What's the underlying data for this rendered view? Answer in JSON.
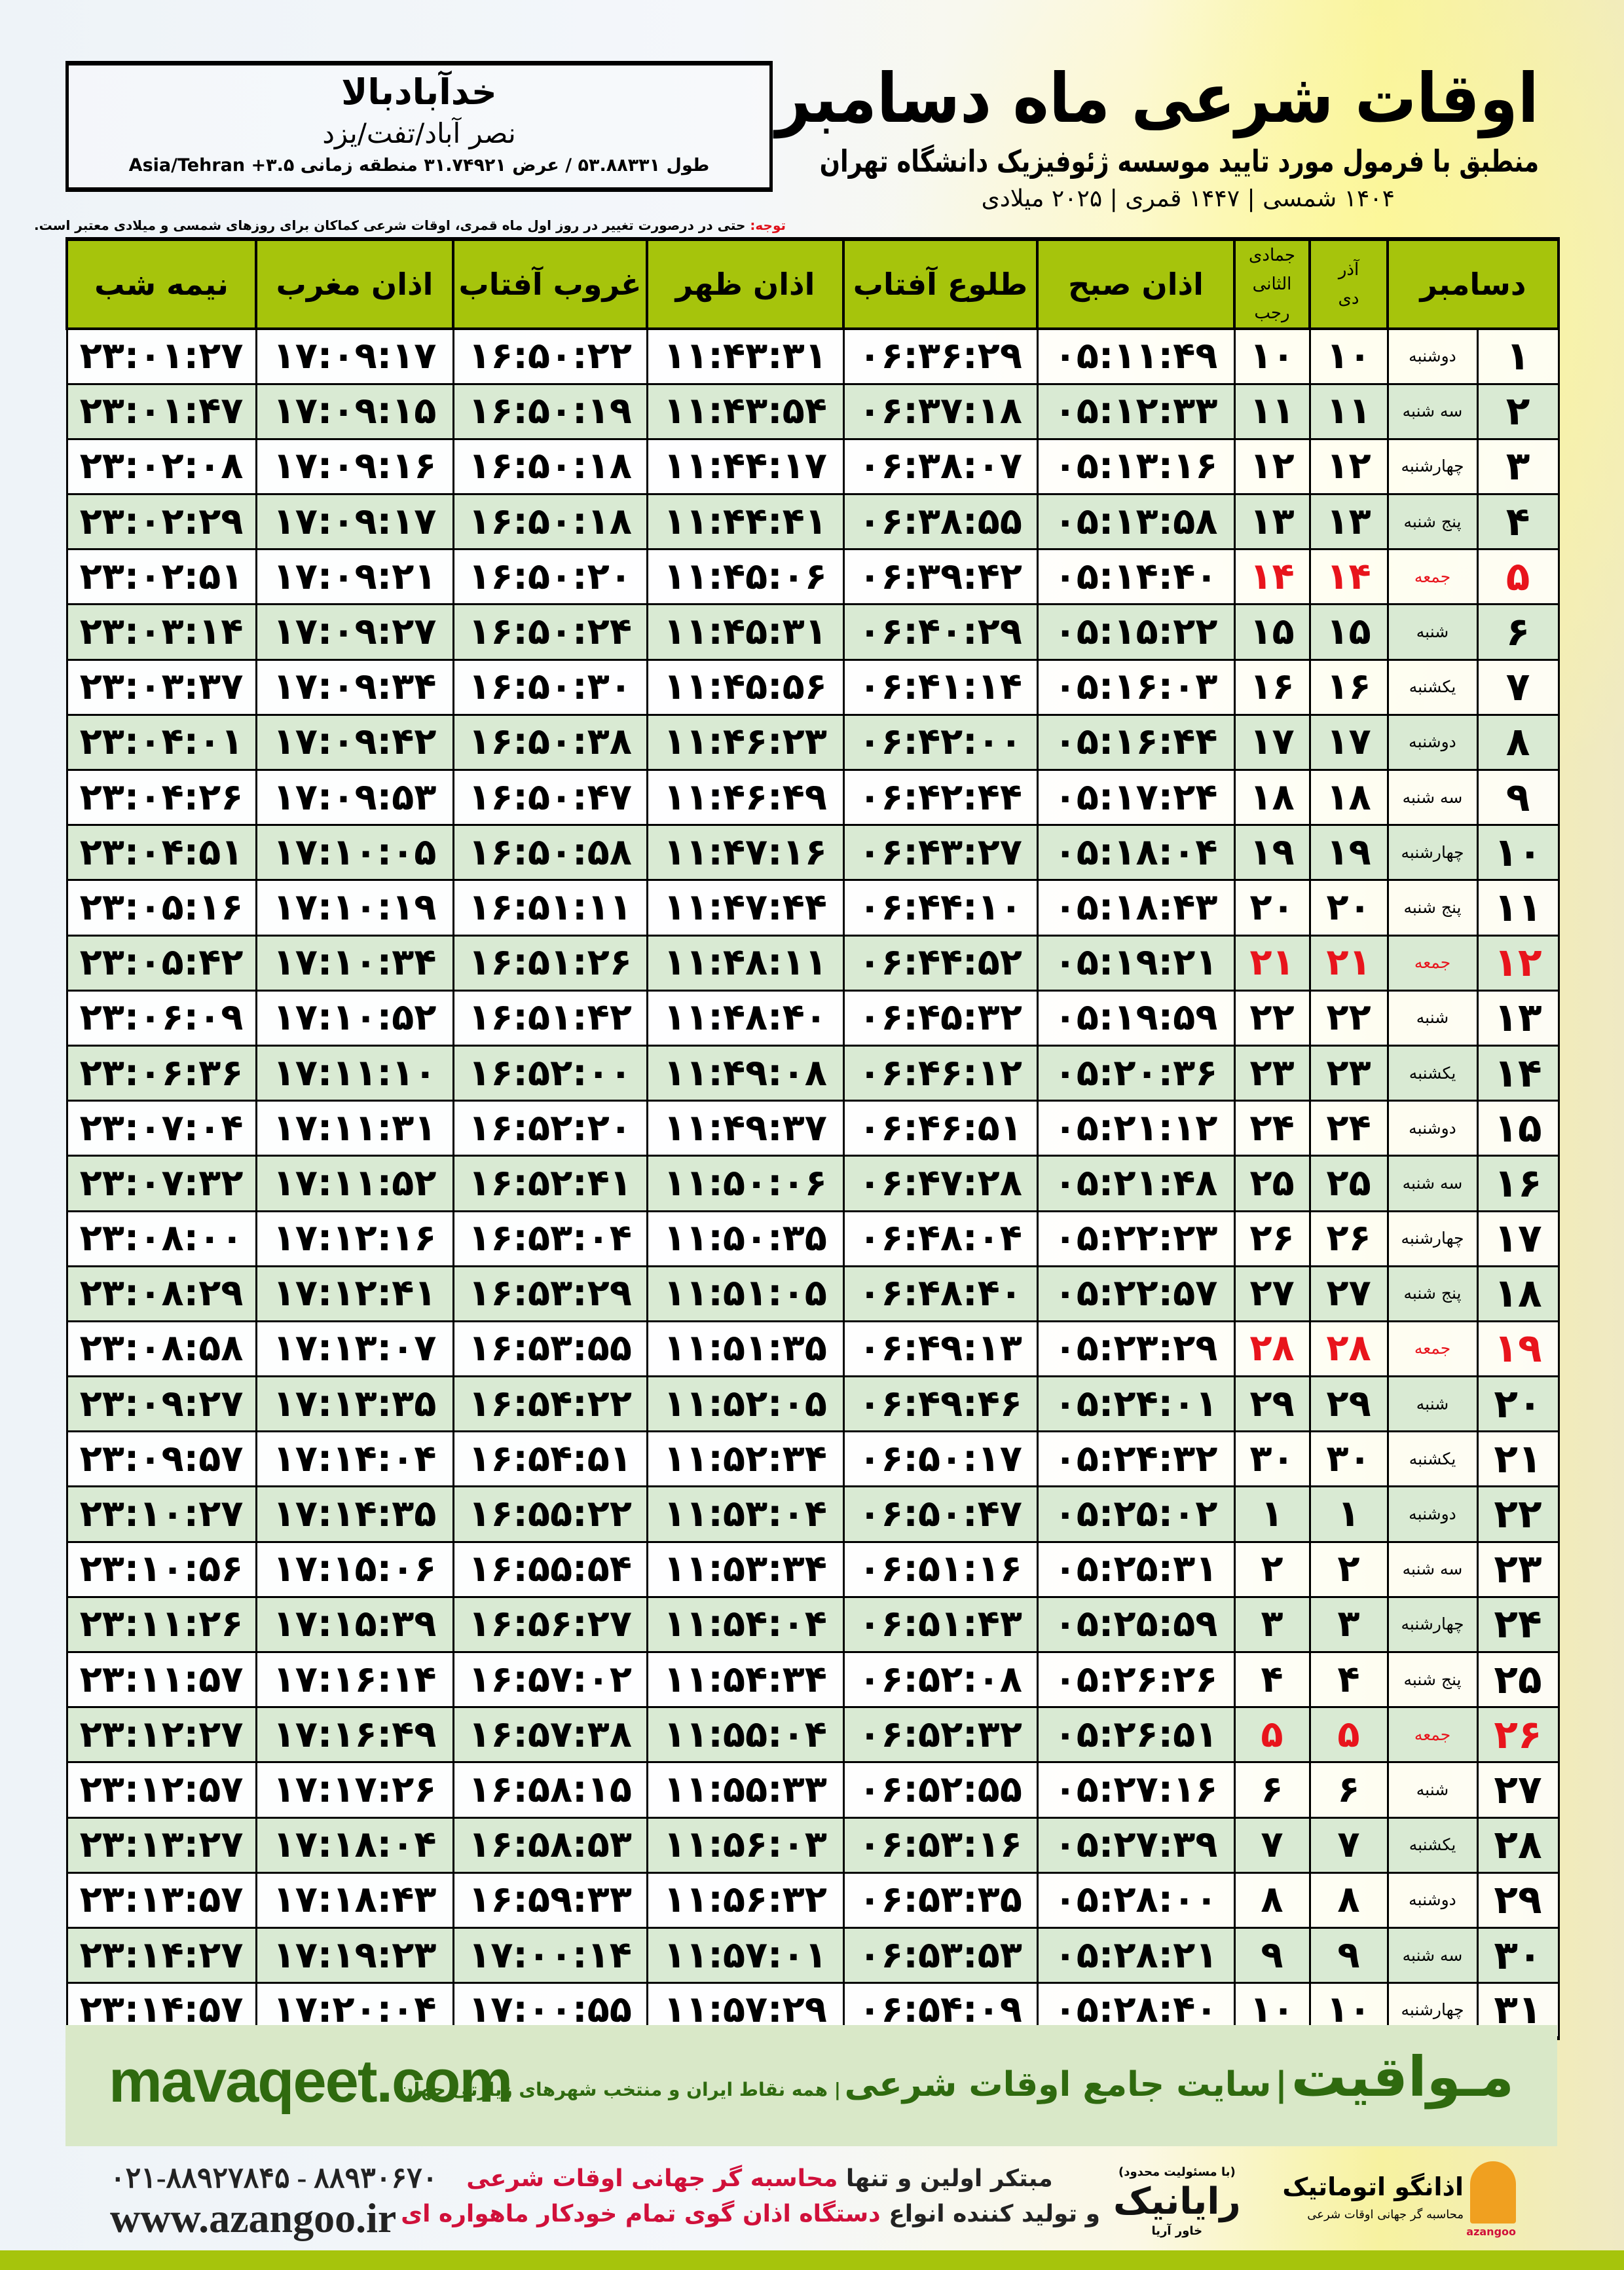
{
  "header": {
    "title": "اوقات شرعی ماه دسامبر",
    "subtitle": "منطبق با فرمول مورد تایید موسسه ژئوفیزیک دانشگاه تهران",
    "dates": "۱۴۰۴ شمسی | ۱۴۴۷ قمری | ۲۰۲۵ میلادی"
  },
  "location": {
    "city": "خدآبادبالا",
    "region": "نصر آباد/تفت/یزد",
    "coords": "طول ۵۳.۸۸۳۳۱ / عرض ۳۱.۷۴۹۲۱ منطقه زمانی ۳.۵+ Asia/Tehran"
  },
  "note": {
    "label": "توجه:",
    "text": " حتی در درصورت تغییر در روز اول ماه قمری، اوقات شرعی کماکان برای روزهای شمسی و میلادی معتبر است."
  },
  "columns": {
    "month": "دسامبر",
    "shamsi_top": "آذر",
    "shamsi_bottom": "دی",
    "qamari_top": "جمادی الثانی",
    "qamari_bottom": "رجب",
    "sobh": "اذان صبح",
    "tolu": "طلوع آفتاب",
    "zohr": "اذان ظهر",
    "ghurub": "غروب آفتاب",
    "maghrib": "اذان مغرب",
    "nimeh": "نیمه شب"
  },
  "colors": {
    "header_green": "#a6c40c",
    "row_green": "#d9ead3",
    "friday_red": "#e8141c",
    "brand_green": "#2f6a0f"
  },
  "rows": [
    {
      "day": "۱",
      "weekday": "دوشنبه",
      "dey": "۱۰",
      "rajab": "۱۰",
      "sobh": "۰۵:۱۱:۴۹",
      "tolu": "۰۶:۳۶:۲۹",
      "zohr": "۱۱:۴۳:۳۱",
      "ghurub": "۱۶:۵۰:۲۲",
      "maghrib": "۱۷:۰۹:۱۷",
      "nimeh": "۲۳:۰۱:۲۷"
    },
    {
      "day": "۲",
      "weekday": "سه شنبه",
      "dey": "۱۱",
      "rajab": "۱۱",
      "sobh": "۰۵:۱۲:۳۳",
      "tolu": "۰۶:۳۷:۱۸",
      "zohr": "۱۱:۴۳:۵۴",
      "ghurub": "۱۶:۵۰:۱۹",
      "maghrib": "۱۷:۰۹:۱۵",
      "nimeh": "۲۳:۰۱:۴۷"
    },
    {
      "day": "۳",
      "weekday": "چهارشنبه",
      "dey": "۱۲",
      "rajab": "۱۲",
      "sobh": "۰۵:۱۳:۱۶",
      "tolu": "۰۶:۳۸:۰۷",
      "zohr": "۱۱:۴۴:۱۷",
      "ghurub": "۱۶:۵۰:۱۸",
      "maghrib": "۱۷:۰۹:۱۶",
      "nimeh": "۲۳:۰۲:۰۸"
    },
    {
      "day": "۴",
      "weekday": "پنج شنبه",
      "dey": "۱۳",
      "rajab": "۱۳",
      "sobh": "۰۵:۱۳:۵۸",
      "tolu": "۰۶:۳۸:۵۵",
      "zohr": "۱۱:۴۴:۴۱",
      "ghurub": "۱۶:۵۰:۱۸",
      "maghrib": "۱۷:۰۹:۱۷",
      "nimeh": "۲۳:۰۲:۲۹"
    },
    {
      "day": "۵",
      "weekday": "جمعه",
      "dey": "۱۴",
      "rajab": "۱۴",
      "sobh": "۰۵:۱۴:۴۰",
      "tolu": "۰۶:۳۹:۴۲",
      "zohr": "۱۱:۴۵:۰۶",
      "ghurub": "۱۶:۵۰:۲۰",
      "maghrib": "۱۷:۰۹:۲۱",
      "nimeh": "۲۳:۰۲:۵۱",
      "friday": true
    },
    {
      "day": "۶",
      "weekday": "شنبه",
      "dey": "۱۵",
      "rajab": "۱۵",
      "sobh": "۰۵:۱۵:۲۲",
      "tolu": "۰۶:۴۰:۲۹",
      "zohr": "۱۱:۴۵:۳۱",
      "ghurub": "۱۶:۵۰:۲۴",
      "maghrib": "۱۷:۰۹:۲۷",
      "nimeh": "۲۳:۰۳:۱۴"
    },
    {
      "day": "۷",
      "weekday": "یکشنبه",
      "dey": "۱۶",
      "rajab": "۱۶",
      "sobh": "۰۵:۱۶:۰۳",
      "tolu": "۰۶:۴۱:۱۴",
      "zohr": "۱۱:۴۵:۵۶",
      "ghurub": "۱۶:۵۰:۳۰",
      "maghrib": "۱۷:۰۹:۳۴",
      "nimeh": "۲۳:۰۳:۳۷"
    },
    {
      "day": "۸",
      "weekday": "دوشنبه",
      "dey": "۱۷",
      "rajab": "۱۷",
      "sobh": "۰۵:۱۶:۴۴",
      "tolu": "۰۶:۴۲:۰۰",
      "zohr": "۱۱:۴۶:۲۳",
      "ghurub": "۱۶:۵۰:۳۸",
      "maghrib": "۱۷:۰۹:۴۲",
      "nimeh": "۲۳:۰۴:۰۱"
    },
    {
      "day": "۹",
      "weekday": "سه شنبه",
      "dey": "۱۸",
      "rajab": "۱۸",
      "sobh": "۰۵:۱۷:۲۴",
      "tolu": "۰۶:۴۲:۴۴",
      "zohr": "۱۱:۴۶:۴۹",
      "ghurub": "۱۶:۵۰:۴۷",
      "maghrib": "۱۷:۰۹:۵۳",
      "nimeh": "۲۳:۰۴:۲۶"
    },
    {
      "day": "۱۰",
      "weekday": "چهارشنبه",
      "dey": "۱۹",
      "rajab": "۱۹",
      "sobh": "۰۵:۱۸:۰۴",
      "tolu": "۰۶:۴۳:۲۷",
      "zohr": "۱۱:۴۷:۱۶",
      "ghurub": "۱۶:۵۰:۵۸",
      "maghrib": "۱۷:۱۰:۰۵",
      "nimeh": "۲۳:۰۴:۵۱"
    },
    {
      "day": "۱۱",
      "weekday": "پنج شنبه",
      "dey": "۲۰",
      "rajab": "۲۰",
      "sobh": "۰۵:۱۸:۴۳",
      "tolu": "۰۶:۴۴:۱۰",
      "zohr": "۱۱:۴۷:۴۴",
      "ghurub": "۱۶:۵۱:۱۱",
      "maghrib": "۱۷:۱۰:۱۹",
      "nimeh": "۲۳:۰۵:۱۶"
    },
    {
      "day": "۱۲",
      "weekday": "جمعه",
      "dey": "۲۱",
      "rajab": "۲۱",
      "sobh": "۰۵:۱۹:۲۱",
      "tolu": "۰۶:۴۴:۵۲",
      "zohr": "۱۱:۴۸:۱۱",
      "ghurub": "۱۶:۵۱:۲۶",
      "maghrib": "۱۷:۱۰:۳۴",
      "nimeh": "۲۳:۰۵:۴۲",
      "friday": true
    },
    {
      "day": "۱۳",
      "weekday": "شنبه",
      "dey": "۲۲",
      "rajab": "۲۲",
      "sobh": "۰۵:۱۹:۵۹",
      "tolu": "۰۶:۴۵:۳۲",
      "zohr": "۱۱:۴۸:۴۰",
      "ghurub": "۱۶:۵۱:۴۲",
      "maghrib": "۱۷:۱۰:۵۲",
      "nimeh": "۲۳:۰۶:۰۹"
    },
    {
      "day": "۱۴",
      "weekday": "یکشنبه",
      "dey": "۲۳",
      "rajab": "۲۳",
      "sobh": "۰۵:۲۰:۳۶",
      "tolu": "۰۶:۴۶:۱۲",
      "zohr": "۱۱:۴۹:۰۸",
      "ghurub": "۱۶:۵۲:۰۰",
      "maghrib": "۱۷:۱۱:۱۰",
      "nimeh": "۲۳:۰۶:۳۶"
    },
    {
      "day": "۱۵",
      "weekday": "دوشنبه",
      "dey": "۲۴",
      "rajab": "۲۴",
      "sobh": "۰۵:۲۱:۱۲",
      "tolu": "۰۶:۴۶:۵۱",
      "zohr": "۱۱:۴۹:۳۷",
      "ghurub": "۱۶:۵۲:۲۰",
      "maghrib": "۱۷:۱۱:۳۱",
      "nimeh": "۲۳:۰۷:۰۴"
    },
    {
      "day": "۱۶",
      "weekday": "سه شنبه",
      "dey": "۲۵",
      "rajab": "۲۵",
      "sobh": "۰۵:۲۱:۴۸",
      "tolu": "۰۶:۴۷:۲۸",
      "zohr": "۱۱:۵۰:۰۶",
      "ghurub": "۱۶:۵۲:۴۱",
      "maghrib": "۱۷:۱۱:۵۲",
      "nimeh": "۲۳:۰۷:۳۲"
    },
    {
      "day": "۱۷",
      "weekday": "چهارشنبه",
      "dey": "۲۶",
      "rajab": "۲۶",
      "sobh": "۰۵:۲۲:۲۳",
      "tolu": "۰۶:۴۸:۰۴",
      "zohr": "۱۱:۵۰:۳۵",
      "ghurub": "۱۶:۵۳:۰۴",
      "maghrib": "۱۷:۱۲:۱۶",
      "nimeh": "۲۳:۰۸:۰۰"
    },
    {
      "day": "۱۸",
      "weekday": "پنج شنبه",
      "dey": "۲۷",
      "rajab": "۲۷",
      "sobh": "۰۵:۲۲:۵۷",
      "tolu": "۰۶:۴۸:۴۰",
      "zohr": "۱۱:۵۱:۰۵",
      "ghurub": "۱۶:۵۳:۲۹",
      "maghrib": "۱۷:۱۲:۴۱",
      "nimeh": "۲۳:۰۸:۲۹"
    },
    {
      "day": "۱۹",
      "weekday": "جمعه",
      "dey": "۲۸",
      "rajab": "۲۸",
      "sobh": "۰۵:۲۳:۲۹",
      "tolu": "۰۶:۴۹:۱۳",
      "zohr": "۱۱:۵۱:۳۵",
      "ghurub": "۱۶:۵۳:۵۵",
      "maghrib": "۱۷:۱۳:۰۷",
      "nimeh": "۲۳:۰۸:۵۸",
      "friday": true
    },
    {
      "day": "۲۰",
      "weekday": "شنبه",
      "dey": "۲۹",
      "rajab": "۲۹",
      "sobh": "۰۵:۲۴:۰۱",
      "tolu": "۰۶:۴۹:۴۶",
      "zohr": "۱۱:۵۲:۰۵",
      "ghurub": "۱۶:۵۴:۲۲",
      "maghrib": "۱۷:۱۳:۳۵",
      "nimeh": "۲۳:۰۹:۲۷"
    },
    {
      "day": "۲۱",
      "weekday": "یکشنبه",
      "dey": "۳۰",
      "rajab": "۳۰",
      "sobh": "۰۵:۲۴:۳۲",
      "tolu": "۰۶:۵۰:۱۷",
      "zohr": "۱۱:۵۲:۳۴",
      "ghurub": "۱۶:۵۴:۵۱",
      "maghrib": "۱۷:۱۴:۰۴",
      "nimeh": "۲۳:۰۹:۵۷"
    },
    {
      "day": "۲۲",
      "weekday": "دوشنبه",
      "dey": "۱",
      "rajab": "۱",
      "sobh": "۰۵:۲۵:۰۲",
      "tolu": "۰۶:۵۰:۴۷",
      "zohr": "۱۱:۵۳:۰۴",
      "ghurub": "۱۶:۵۵:۲۲",
      "maghrib": "۱۷:۱۴:۳۵",
      "nimeh": "۲۳:۱۰:۲۷"
    },
    {
      "day": "۲۳",
      "weekday": "سه شنبه",
      "dey": "۲",
      "rajab": "۲",
      "sobh": "۰۵:۲۵:۳۱",
      "tolu": "۰۶:۵۱:۱۶",
      "zohr": "۱۱:۵۳:۳۴",
      "ghurub": "۱۶:۵۵:۵۴",
      "maghrib": "۱۷:۱۵:۰۶",
      "nimeh": "۲۳:۱۰:۵۶"
    },
    {
      "day": "۲۴",
      "weekday": "چهارشنبه",
      "dey": "۳",
      "rajab": "۳",
      "sobh": "۰۵:۲۵:۵۹",
      "tolu": "۰۶:۵۱:۴۳",
      "zohr": "۱۱:۵۴:۰۴",
      "ghurub": "۱۶:۵۶:۲۷",
      "maghrib": "۱۷:۱۵:۳۹",
      "nimeh": "۲۳:۱۱:۲۶"
    },
    {
      "day": "۲۵",
      "weekday": "پنج شنبه",
      "dey": "۴",
      "rajab": "۴",
      "sobh": "۰۵:۲۶:۲۶",
      "tolu": "۰۶:۵۲:۰۸",
      "zohr": "۱۱:۵۴:۳۴",
      "ghurub": "۱۶:۵۷:۰۲",
      "maghrib": "۱۷:۱۶:۱۴",
      "nimeh": "۲۳:۱۱:۵۷"
    },
    {
      "day": "۲۶",
      "weekday": "جمعه",
      "dey": "۵",
      "rajab": "۵",
      "sobh": "۰۵:۲۶:۵۱",
      "tolu": "۰۶:۵۲:۳۲",
      "zohr": "۱۱:۵۵:۰۴",
      "ghurub": "۱۶:۵۷:۳۸",
      "maghrib": "۱۷:۱۶:۴۹",
      "nimeh": "۲۳:۱۲:۲۷",
      "friday": true
    },
    {
      "day": "۲۷",
      "weekday": "شنبه",
      "dey": "۶",
      "rajab": "۶",
      "sobh": "۰۵:۲۷:۱۶",
      "tolu": "۰۶:۵۲:۵۵",
      "zohr": "۱۱:۵۵:۳۳",
      "ghurub": "۱۶:۵۸:۱۵",
      "maghrib": "۱۷:۱۷:۲۶",
      "nimeh": "۲۳:۱۲:۵۷"
    },
    {
      "day": "۲۸",
      "weekday": "یکشنبه",
      "dey": "۷",
      "rajab": "۷",
      "sobh": "۰۵:۲۷:۳۹",
      "tolu": "۰۶:۵۳:۱۶",
      "zohr": "۱۱:۵۶:۰۳",
      "ghurub": "۱۶:۵۸:۵۳",
      "maghrib": "۱۷:۱۸:۰۴",
      "nimeh": "۲۳:۱۳:۲۷"
    },
    {
      "day": "۲۹",
      "weekday": "دوشنبه",
      "dey": "۸",
      "rajab": "۸",
      "sobh": "۰۵:۲۸:۰۰",
      "tolu": "۰۶:۵۳:۳۵",
      "zohr": "۱۱:۵۶:۳۲",
      "ghurub": "۱۶:۵۹:۳۳",
      "maghrib": "۱۷:۱۸:۴۳",
      "nimeh": "۲۳:۱۳:۵۷"
    },
    {
      "day": "۳۰",
      "weekday": "سه شنبه",
      "dey": "۹",
      "rajab": "۹",
      "sobh": "۰۵:۲۸:۲۱",
      "tolu": "۰۶:۵۳:۵۳",
      "zohr": "۱۱:۵۷:۰۱",
      "ghurub": "۱۷:۰۰:۱۴",
      "maghrib": "۱۷:۱۹:۲۳",
      "nimeh": "۲۳:۱۴:۲۷"
    },
    {
      "day": "۳۱",
      "weekday": "چهارشنبه",
      "dey": "۱۰",
      "rajab": "۱۰",
      "sobh": "۰۵:۲۸:۴۰",
      "tolu": "۰۶:۵۴:۰۹",
      "zohr": "۱۱:۵۷:۲۹",
      "ghurub": "۱۷:۰۰:۵۵",
      "maghrib": "۱۷:۲۰:۰۴",
      "nimeh": "۲۳:۱۴:۵۷"
    }
  ],
  "footer": {
    "brand": "مـواقیت",
    "brand_sep": "|",
    "brand_tagline": "سایت جامع اوقات شرعی",
    "brand_sub": "| همه نقاط ایران و منتخب شهرهای زیارتی جهان",
    "site": "mavaqeet.com",
    "promo_line1_a": "مبتکر اولین و تنها ",
    "promo_line1_b": "محاسبه گر جهانی اوقات شرعی",
    "promo_line2_a": "و تولید کننده انواع ",
    "promo_line2_b": "دستگاه اذان گوی تمام خودکار ماهواره ای",
    "phone": "۰۲۱-۸۸۹۲۷۸۴۵ - ۸۸۹۳۰۶۷۰",
    "website": "www.azangoo.ir",
    "logo_raianik": "رایانیک",
    "logo_raianik_sub": "خاور آریا",
    "logo_raianik_top": "(با مسئولیت محدود)",
    "logo_azangoo": "اذانگو اتوماتیک",
    "logo_azangoo_sub": "محاسبه گر جهانی اوقات شرعی",
    "logo_azangoo_en": "azangoo"
  }
}
